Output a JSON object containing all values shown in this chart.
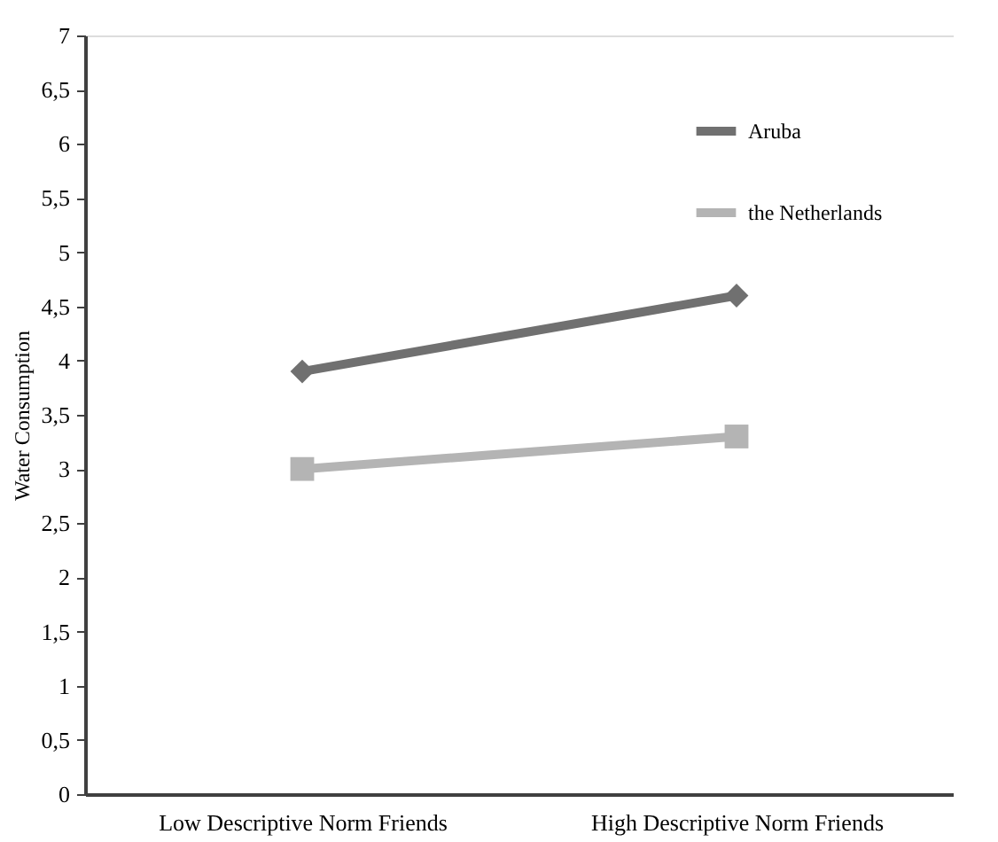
{
  "chart_data": {
    "type": "line",
    "ylabel": "Water Consumption",
    "categories": [
      "Low Descriptive Norm Friends",
      "High Descriptive Norm Friends"
    ],
    "series": [
      {
        "name": "Aruba",
        "color": "#707070",
        "marker": "diamond",
        "values": [
          3.9,
          4.6
        ]
      },
      {
        "name": "the Netherlands",
        "color": "#b4b4b4",
        "marker": "square",
        "values": [
          3.0,
          3.3
        ]
      }
    ],
    "ylim": [
      0,
      7
    ],
    "yticks": [
      0,
      {
        "value": 0.5,
        "label": "0,5"
      },
      1,
      {
        "value": 1.5,
        "label": "1,5"
      },
      2,
      {
        "value": 2.5,
        "label": "2,5"
      },
      3,
      {
        "value": 3.5,
        "label": "3,5"
      },
      4,
      {
        "value": 4.5,
        "label": "4,5"
      },
      5,
      {
        "value": 5.5,
        "label": "5,5"
      },
      6,
      {
        "value": 6.5,
        "label": "6,5"
      },
      7
    ],
    "grid": false,
    "legend": "top right",
    "line_style": "solid"
  }
}
